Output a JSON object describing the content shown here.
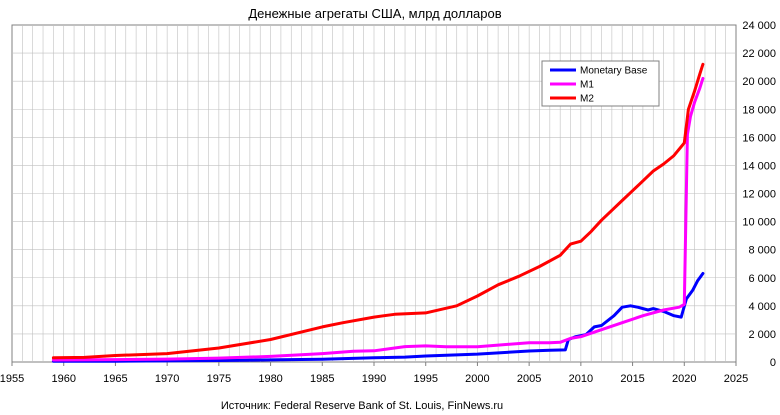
{
  "chart_data": {
    "type": "line",
    "title": "Денежные агрегаты США, млрд долларов",
    "source": "Источник: Federal Reserve Bank of St. Louis, FinNews.ru",
    "xlim": [
      1955,
      2025
    ],
    "ylim": [
      0,
      24000
    ],
    "x_ticks": [
      "1955",
      "1960",
      "1965",
      "1970",
      "1975",
      "1980",
      "1985",
      "1990",
      "1995",
      "2000",
      "2005",
      "2010",
      "2015",
      "2020",
      "2025"
    ],
    "y_ticks": [
      "0",
      "2 000",
      "4 000",
      "6 000",
      "8 000",
      "10 000",
      "12 000",
      "14 000",
      "16 000",
      "18 000",
      "20 000",
      "22 000",
      "24 000"
    ],
    "grid": true,
    "legend_position": "top-right",
    "series": [
      {
        "name": "Monetary Base",
        "color": "#0000ff",
        "points": [
          [
            1959,
            50
          ],
          [
            1965,
            60
          ],
          [
            1970,
            80
          ],
          [
            1975,
            110
          ],
          [
            1980,
            150
          ],
          [
            1985,
            200
          ],
          [
            1990,
            300
          ],
          [
            1993,
            350
          ],
          [
            1995,
            430
          ],
          [
            2000,
            560
          ],
          [
            2005,
            780
          ],
          [
            2007,
            830
          ],
          [
            2008.5,
            860
          ],
          [
            2008.8,
            1600
          ],
          [
            2009.5,
            1800
          ],
          [
            2010.5,
            1950
          ],
          [
            2011.3,
            2500
          ],
          [
            2012,
            2600
          ],
          [
            2013.2,
            3300
          ],
          [
            2014,
            3900
          ],
          [
            2014.8,
            4000
          ],
          [
            2015.5,
            3900
          ],
          [
            2016.5,
            3700
          ],
          [
            2017,
            3800
          ],
          [
            2018,
            3600
          ],
          [
            2019,
            3300
          ],
          [
            2019.7,
            3200
          ],
          [
            2020.2,
            4500
          ],
          [
            2020.8,
            5100
          ],
          [
            2021.3,
            5800
          ],
          [
            2021.8,
            6300
          ]
        ]
      },
      {
        "name": "M1",
        "color": "#ff00ff",
        "points": [
          [
            1959,
            140
          ],
          [
            1965,
            170
          ],
          [
            1970,
            210
          ],
          [
            1975,
            280
          ],
          [
            1980,
            400
          ],
          [
            1985,
            600
          ],
          [
            1988,
            760
          ],
          [
            1990,
            800
          ],
          [
            1992,
            1000
          ],
          [
            1993,
            1100
          ],
          [
            1995,
            1150
          ],
          [
            1997,
            1090
          ],
          [
            2000,
            1080
          ],
          [
            2002,
            1200
          ],
          [
            2005,
            1370
          ],
          [
            2007,
            1370
          ],
          [
            2008,
            1400
          ],
          [
            2009,
            1680
          ],
          [
            2010,
            1800
          ],
          [
            2012,
            2300
          ],
          [
            2014,
            2800
          ],
          [
            2016,
            3300
          ],
          [
            2018,
            3700
          ],
          [
            2019.5,
            3900
          ],
          [
            2020,
            4100
          ],
          [
            2020.3,
            16200
          ],
          [
            2020.6,
            17500
          ],
          [
            2021,
            18500
          ],
          [
            2021.5,
            19500
          ],
          [
            2021.8,
            20200
          ]
        ]
      },
      {
        "name": "M2",
        "color": "#ff0000",
        "points": [
          [
            1959,
            300
          ],
          [
            1962,
            330
          ],
          [
            1965,
            460
          ],
          [
            1970,
            600
          ],
          [
            1975,
            1000
          ],
          [
            1980,
            1600
          ],
          [
            1985,
            2500
          ],
          [
            1987,
            2800
          ],
          [
            1990,
            3200
          ],
          [
            1992,
            3400
          ],
          [
            1995,
            3500
          ],
          [
            1998,
            4000
          ],
          [
            2000,
            4700
          ],
          [
            2002,
            5500
          ],
          [
            2004,
            6100
          ],
          [
            2006,
            6800
          ],
          [
            2008,
            7600
          ],
          [
            2009,
            8400
          ],
          [
            2010,
            8600
          ],
          [
            2011,
            9300
          ],
          [
            2012,
            10100
          ],
          [
            2013,
            10800
          ],
          [
            2014,
            11500
          ],
          [
            2015,
            12200
          ],
          [
            2016,
            12900
          ],
          [
            2017,
            13600
          ],
          [
            2018,
            14100
          ],
          [
            2019,
            14700
          ],
          [
            2020,
            15600
          ],
          [
            2020.4,
            18000
          ],
          [
            2021,
            19300
          ],
          [
            2021.5,
            20500
          ],
          [
            2021.8,
            21200
          ]
        ]
      }
    ]
  }
}
